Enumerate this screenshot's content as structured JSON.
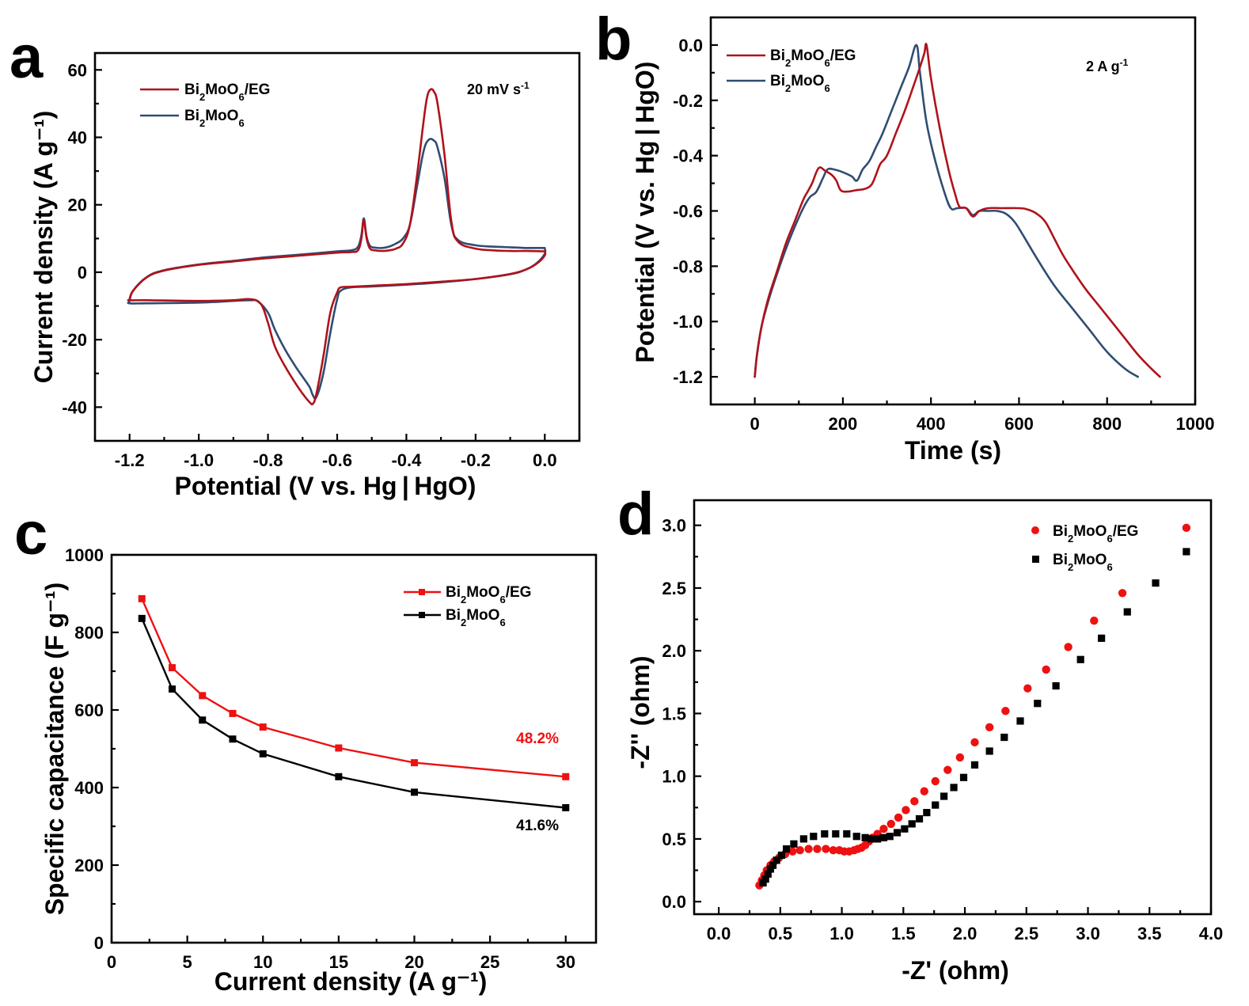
{
  "figure": {
    "colors": {
      "cv_eg": "#b0121b",
      "cv_pure": "#2f4d72",
      "rate_eg": "#ee1111",
      "rate_pure": "#000000",
      "eis_eg": "#ee1111",
      "eis_pure": "#000000"
    }
  },
  "chart_data": [
    {
      "id": "a",
      "panel_label": "a",
      "type": "line",
      "title": "",
      "xlabel": "Potential (V vs. Hg | HgO)",
      "ylabel": "Current density (A g⁻¹)",
      "xlim": [
        -1.3,
        0.1
      ],
      "ylim": [
        -50,
        65
      ],
      "xticks": [
        -1.2,
        -1.0,
        -0.8,
        -0.6,
        -0.4,
        -0.2,
        0.0
      ],
      "xtick_labels": [
        "-1.2",
        "-1.0",
        "-0.8",
        "-0.6",
        "-0.4",
        "-0.2",
        "0.0"
      ],
      "yticks": [
        -40,
        -20,
        0,
        20,
        40,
        60
      ],
      "ytick_labels": [
        "-40",
        "-20",
        "0",
        "20",
        "40",
        "60"
      ],
      "annotation": "20 mV s⁻¹",
      "legend_position": "top-left",
      "series": [
        {
          "name": "Bi₂MoO₆/EG",
          "legend_label": "Bi2MoO6/EG",
          "color_key": "cv_eg",
          "x": [
            0.0,
            -0.05,
            -0.1,
            -0.15,
            -0.2,
            -0.25,
            -0.27,
            -0.29,
            -0.31,
            -0.32,
            -0.33,
            -0.34,
            -0.35,
            -0.37,
            -0.39,
            -0.41,
            -0.43,
            -0.45,
            -0.47,
            -0.49,
            -0.505,
            -0.515,
            -0.523,
            -0.53,
            -0.54,
            -0.56,
            -0.6,
            -0.7,
            -0.8,
            -0.9,
            -1.0,
            -1.1,
            -1.15,
            -1.19,
            -1.2,
            -1.2,
            -1.15,
            -1.0,
            -0.9,
            -0.85,
            -0.82,
            -0.8,
            -0.78,
            -0.75,
            -0.72,
            -0.7,
            -0.68,
            -0.67,
            -0.66,
            -0.64,
            -0.62,
            -0.6,
            -0.59,
            -0.56,
            -0.5,
            -0.4,
            -0.3,
            -0.2,
            -0.1,
            -0.05,
            -0.02,
            0.0,
            0.0
          ],
          "y": [
            6.2,
            6.3,
            6.3,
            6.5,
            7.0,
            9.0,
            15,
            35,
            50,
            53.5,
            54.2,
            52,
            45,
            28,
            14,
            8.5,
            7.0,
            6.5,
            6.3,
            6.5,
            7.0,
            10,
            15.5,
            10,
            6.5,
            6.0,
            5.8,
            5.0,
            4.2,
            3.2,
            2.2,
            0.5,
            -1.5,
            -5.5,
            -8.0,
            -8.3,
            -8.3,
            -8.5,
            -8.3,
            -8.0,
            -9.5,
            -15,
            -22,
            -28,
            -33,
            -36,
            -38.5,
            -39,
            -36,
            -25,
            -12,
            -6,
            -4.5,
            -4.3,
            -4.0,
            -3.5,
            -2.8,
            -2.0,
            -0.5,
            1.0,
            2.8,
            5.0,
            6.2
          ]
        },
        {
          "name": "Bi₂MoO₆",
          "legend_label": "Bi2MoO6",
          "color_key": "cv_pure",
          "x": [
            0.0,
            -0.05,
            -0.1,
            -0.15,
            -0.2,
            -0.25,
            -0.27,
            -0.29,
            -0.31,
            -0.32,
            -0.335,
            -0.35,
            -0.37,
            -0.39,
            -0.41,
            -0.43,
            -0.45,
            -0.47,
            -0.49,
            -0.505,
            -0.515,
            -0.523,
            -0.53,
            -0.54,
            -0.56,
            -0.6,
            -0.7,
            -0.8,
            -0.9,
            -1.0,
            -1.1,
            -1.15,
            -1.19,
            -1.2,
            -1.2,
            -1.15,
            -1.0,
            -0.9,
            -0.85,
            -0.83,
            -0.8,
            -0.78,
            -0.75,
            -0.72,
            -0.7,
            -0.68,
            -0.67,
            -0.66,
            -0.64,
            -0.62,
            -0.6,
            -0.59,
            -0.56,
            -0.5,
            -0.4,
            -0.3,
            -0.2,
            -0.1,
            -0.05,
            -0.02,
            0.0,
            0.0
          ],
          "y": [
            7.2,
            7.2,
            7.4,
            7.6,
            8.0,
            9.5,
            14,
            28,
            37,
            39,
            39.3,
            36,
            25,
            14,
            10,
            8.5,
            7.6,
            7.2,
            7.3,
            7.8,
            10.5,
            16,
            11,
            7.5,
            6.5,
            6.2,
            5.3,
            4.5,
            3.4,
            2.3,
            0.6,
            -1.4,
            -5.5,
            -8.5,
            -9.2,
            -9.2,
            -9.0,
            -8.5,
            -8.3,
            -8.6,
            -12,
            -17,
            -23,
            -28,
            -31,
            -34,
            -36.5,
            -37,
            -30,
            -18,
            -8,
            -5.5,
            -4.5,
            -4.2,
            -3.7,
            -3.0,
            -2.0,
            -0.6,
            1.0,
            3.0,
            5.5,
            7.2
          ]
        }
      ]
    },
    {
      "id": "b",
      "panel_label": "b",
      "type": "line",
      "title": "",
      "xlabel": "Time (s)",
      "ylabel": "Potential (V vs. Hg | HgO)",
      "xlim": [
        -100,
        1000
      ],
      "ylim": [
        -1.3,
        0.1
      ],
      "xticks": [
        0,
        200,
        400,
        600,
        800,
        1000
      ],
      "xtick_labels": [
        "0",
        "200",
        "400",
        "600",
        "800",
        "1000"
      ],
      "yticks": [
        -1.2,
        -1.0,
        -0.8,
        -0.6,
        -0.4,
        -0.2,
        0.0
      ],
      "ytick_labels": [
        "-1.2",
        "-1.0",
        "-0.8",
        "-0.6",
        "-0.4",
        "-0.2",
        "0.0"
      ],
      "annotation": "2 A g⁻¹",
      "legend_position": "top-left",
      "series": [
        {
          "name": "Bi₂MoO₆/EG",
          "legend_label": "Bi2MoO6/EG",
          "color_key": "cv_eg",
          "x": [
            0,
            5,
            15,
            30,
            50,
            70,
            90,
            110,
            120,
            130,
            145,
            160,
            175,
            185,
            195,
            210,
            230,
            250,
            265,
            275,
            285,
            300,
            320,
            340,
            360,
            375,
            385,
            390,
            400,
            420,
            440,
            455,
            465,
            480,
            495,
            510,
            530,
            560,
            600,
            620,
            640,
            660,
            680,
            700,
            720,
            750,
            780,
            810,
            840,
            870,
            900,
            920
          ],
          "y": [
            -1.2,
            -1.12,
            -1.02,
            -0.92,
            -0.82,
            -0.72,
            -0.64,
            -0.56,
            -0.53,
            -0.5,
            -0.445,
            -0.455,
            -0.47,
            -0.49,
            -0.525,
            -0.53,
            -0.525,
            -0.52,
            -0.505,
            -0.47,
            -0.43,
            -0.4,
            -0.32,
            -0.24,
            -0.15,
            -0.08,
            -0.03,
            0.0,
            -0.12,
            -0.3,
            -0.45,
            -0.54,
            -0.585,
            -0.59,
            -0.62,
            -0.6,
            -0.59,
            -0.59,
            -0.59,
            -0.595,
            -0.61,
            -0.64,
            -0.7,
            -0.76,
            -0.81,
            -0.88,
            -0.94,
            -1.0,
            -1.06,
            -1.12,
            -1.17,
            -1.2
          ]
        },
        {
          "name": "Bi₂MoO₆",
          "legend_label": "Bi2MoO6",
          "color_key": "cv_pure",
          "x": [
            0,
            5,
            15,
            30,
            50,
            70,
            90,
            110,
            125,
            140,
            155,
            165,
            180,
            200,
            220,
            232,
            245,
            260,
            275,
            290,
            310,
            330,
            350,
            367,
            375,
            390,
            410,
            430,
            445,
            460,
            480,
            495,
            510,
            530,
            550,
            570,
            590,
            610,
            640,
            680,
            720,
            760,
            800,
            840,
            870
          ],
          "y": [
            -1.2,
            -1.12,
            -1.02,
            -0.93,
            -0.83,
            -0.74,
            -0.66,
            -0.59,
            -0.55,
            -0.53,
            -0.48,
            -0.45,
            -0.45,
            -0.46,
            -0.475,
            -0.49,
            -0.45,
            -0.42,
            -0.37,
            -0.32,
            -0.24,
            -0.16,
            -0.08,
            0.0,
            -0.1,
            -0.28,
            -0.42,
            -0.53,
            -0.59,
            -0.59,
            -0.59,
            -0.615,
            -0.6,
            -0.6,
            -0.6,
            -0.61,
            -0.64,
            -0.69,
            -0.77,
            -0.87,
            -0.95,
            -1.03,
            -1.11,
            -1.17,
            -1.2
          ]
        }
      ]
    },
    {
      "id": "c",
      "panel_label": "c",
      "type": "line",
      "title": "",
      "xlabel": "Current density (A g⁻¹)",
      "ylabel": "Specific capacitance (F g⁻¹)",
      "xlim": [
        0,
        32
      ],
      "ylim": [
        0,
        1000
      ],
      "xticks": [
        0,
        5,
        10,
        15,
        20,
        25,
        30
      ],
      "xtick_labels": [
        "0",
        "5",
        "10",
        "15",
        "20",
        "25",
        "30"
      ],
      "yticks": [
        0,
        200,
        400,
        600,
        800,
        1000
      ],
      "ytick_labels": [
        "0",
        "200",
        "400",
        "600",
        "800",
        "1000"
      ],
      "legend_position": "top-right",
      "categories": [
        2,
        4,
        6,
        8,
        10,
        15,
        20,
        30
      ],
      "series": [
        {
          "name": "Bi₂MoO₆/EG",
          "legend_label": "Bi2MoO6/EG",
          "color_key": "rate_eg",
          "values": [
            887,
            709,
            637,
            591,
            556,
            502,
            464,
            428
          ],
          "retention_label": "48.2%"
        },
        {
          "name": "Bi₂MoO₆",
          "legend_label": "Bi2MoO6",
          "color_key": "rate_pure",
          "values": [
            836,
            654,
            574,
            525,
            487,
            428,
            388,
            348
          ],
          "retention_label": "41.6%"
        }
      ]
    },
    {
      "id": "d",
      "panel_label": "d",
      "type": "scatter",
      "title": "",
      "xlabel": "-Z' (ohm)",
      "ylabel": "-Z'' (ohm)",
      "xlim": [
        -0.2,
        4.0
      ],
      "ylim": [
        -0.1,
        3.2
      ],
      "xticks": [
        0.0,
        0.5,
        1.0,
        1.5,
        2.0,
        2.5,
        3.0,
        3.5,
        4.0
      ],
      "xtick_labels": [
        "0.0",
        "0.5",
        "1.0",
        "1.5",
        "2.0",
        "2.5",
        "3.0",
        "3.5",
        "4.0"
      ],
      "yticks": [
        0.0,
        0.5,
        1.0,
        1.5,
        2.0,
        2.5,
        3.0
      ],
      "ytick_labels": [
        "0.0",
        "0.5",
        "1.0",
        "1.5",
        "2.0",
        "2.5",
        "3.0"
      ],
      "legend_position": "top-right",
      "series": [
        {
          "name": "Bi₂MoO₆/EG",
          "legend_label": "Bi2MoO6/EG",
          "color_key": "eis_eg",
          "marker": "circle",
          "x": [
            0.33,
            0.35,
            0.37,
            0.39,
            0.42,
            0.45,
            0.49,
            0.54,
            0.6,
            0.66,
            0.73,
            0.8,
            0.87,
            0.93,
            0.98,
            1.02,
            1.06,
            1.1,
            1.13,
            1.16,
            1.19,
            1.22,
            1.25,
            1.29,
            1.34,
            1.4,
            1.46,
            1.52,
            1.59,
            1.67,
            1.76,
            1.86,
            1.96,
            2.08,
            2.2,
            2.33,
            2.51,
            2.66,
            2.84,
            3.05,
            3.28,
            3.8
          ],
          "y": [
            0.13,
            0.17,
            0.21,
            0.25,
            0.29,
            0.32,
            0.35,
            0.38,
            0.4,
            0.41,
            0.42,
            0.42,
            0.42,
            0.41,
            0.41,
            0.4,
            0.4,
            0.41,
            0.42,
            0.43,
            0.45,
            0.48,
            0.51,
            0.54,
            0.58,
            0.62,
            0.67,
            0.73,
            0.8,
            0.88,
            0.96,
            1.05,
            1.15,
            1.27,
            1.39,
            1.52,
            1.7,
            1.85,
            2.03,
            2.24,
            2.46,
            2.98
          ]
        },
        {
          "name": "Bi₂MoO₆",
          "legend_label": "Bi2MoO6",
          "color_key": "eis_pure",
          "marker": "square",
          "x": [
            0.36,
            0.38,
            0.4,
            0.42,
            0.44,
            0.47,
            0.51,
            0.55,
            0.61,
            0.69,
            0.77,
            0.86,
            0.95,
            1.04,
            1.12,
            1.19,
            1.24,
            1.29,
            1.34,
            1.39,
            1.45,
            1.51,
            1.57,
            1.63,
            1.69,
            1.76,
            1.83,
            1.91,
            1.99,
            2.08,
            2.2,
            2.32,
            2.45,
            2.59,
            2.74,
            2.94,
            3.11,
            3.32,
            3.55,
            3.8
          ],
          "y": [
            0.15,
            0.18,
            0.22,
            0.26,
            0.29,
            0.33,
            0.37,
            0.42,
            0.46,
            0.5,
            0.52,
            0.54,
            0.54,
            0.54,
            0.52,
            0.51,
            0.5,
            0.5,
            0.51,
            0.52,
            0.55,
            0.58,
            0.62,
            0.66,
            0.71,
            0.77,
            0.84,
            0.91,
            0.99,
            1.09,
            1.2,
            1.31,
            1.44,
            1.58,
            1.72,
            1.93,
            2.1,
            2.31,
            2.54,
            2.79
          ]
        }
      ]
    }
  ]
}
